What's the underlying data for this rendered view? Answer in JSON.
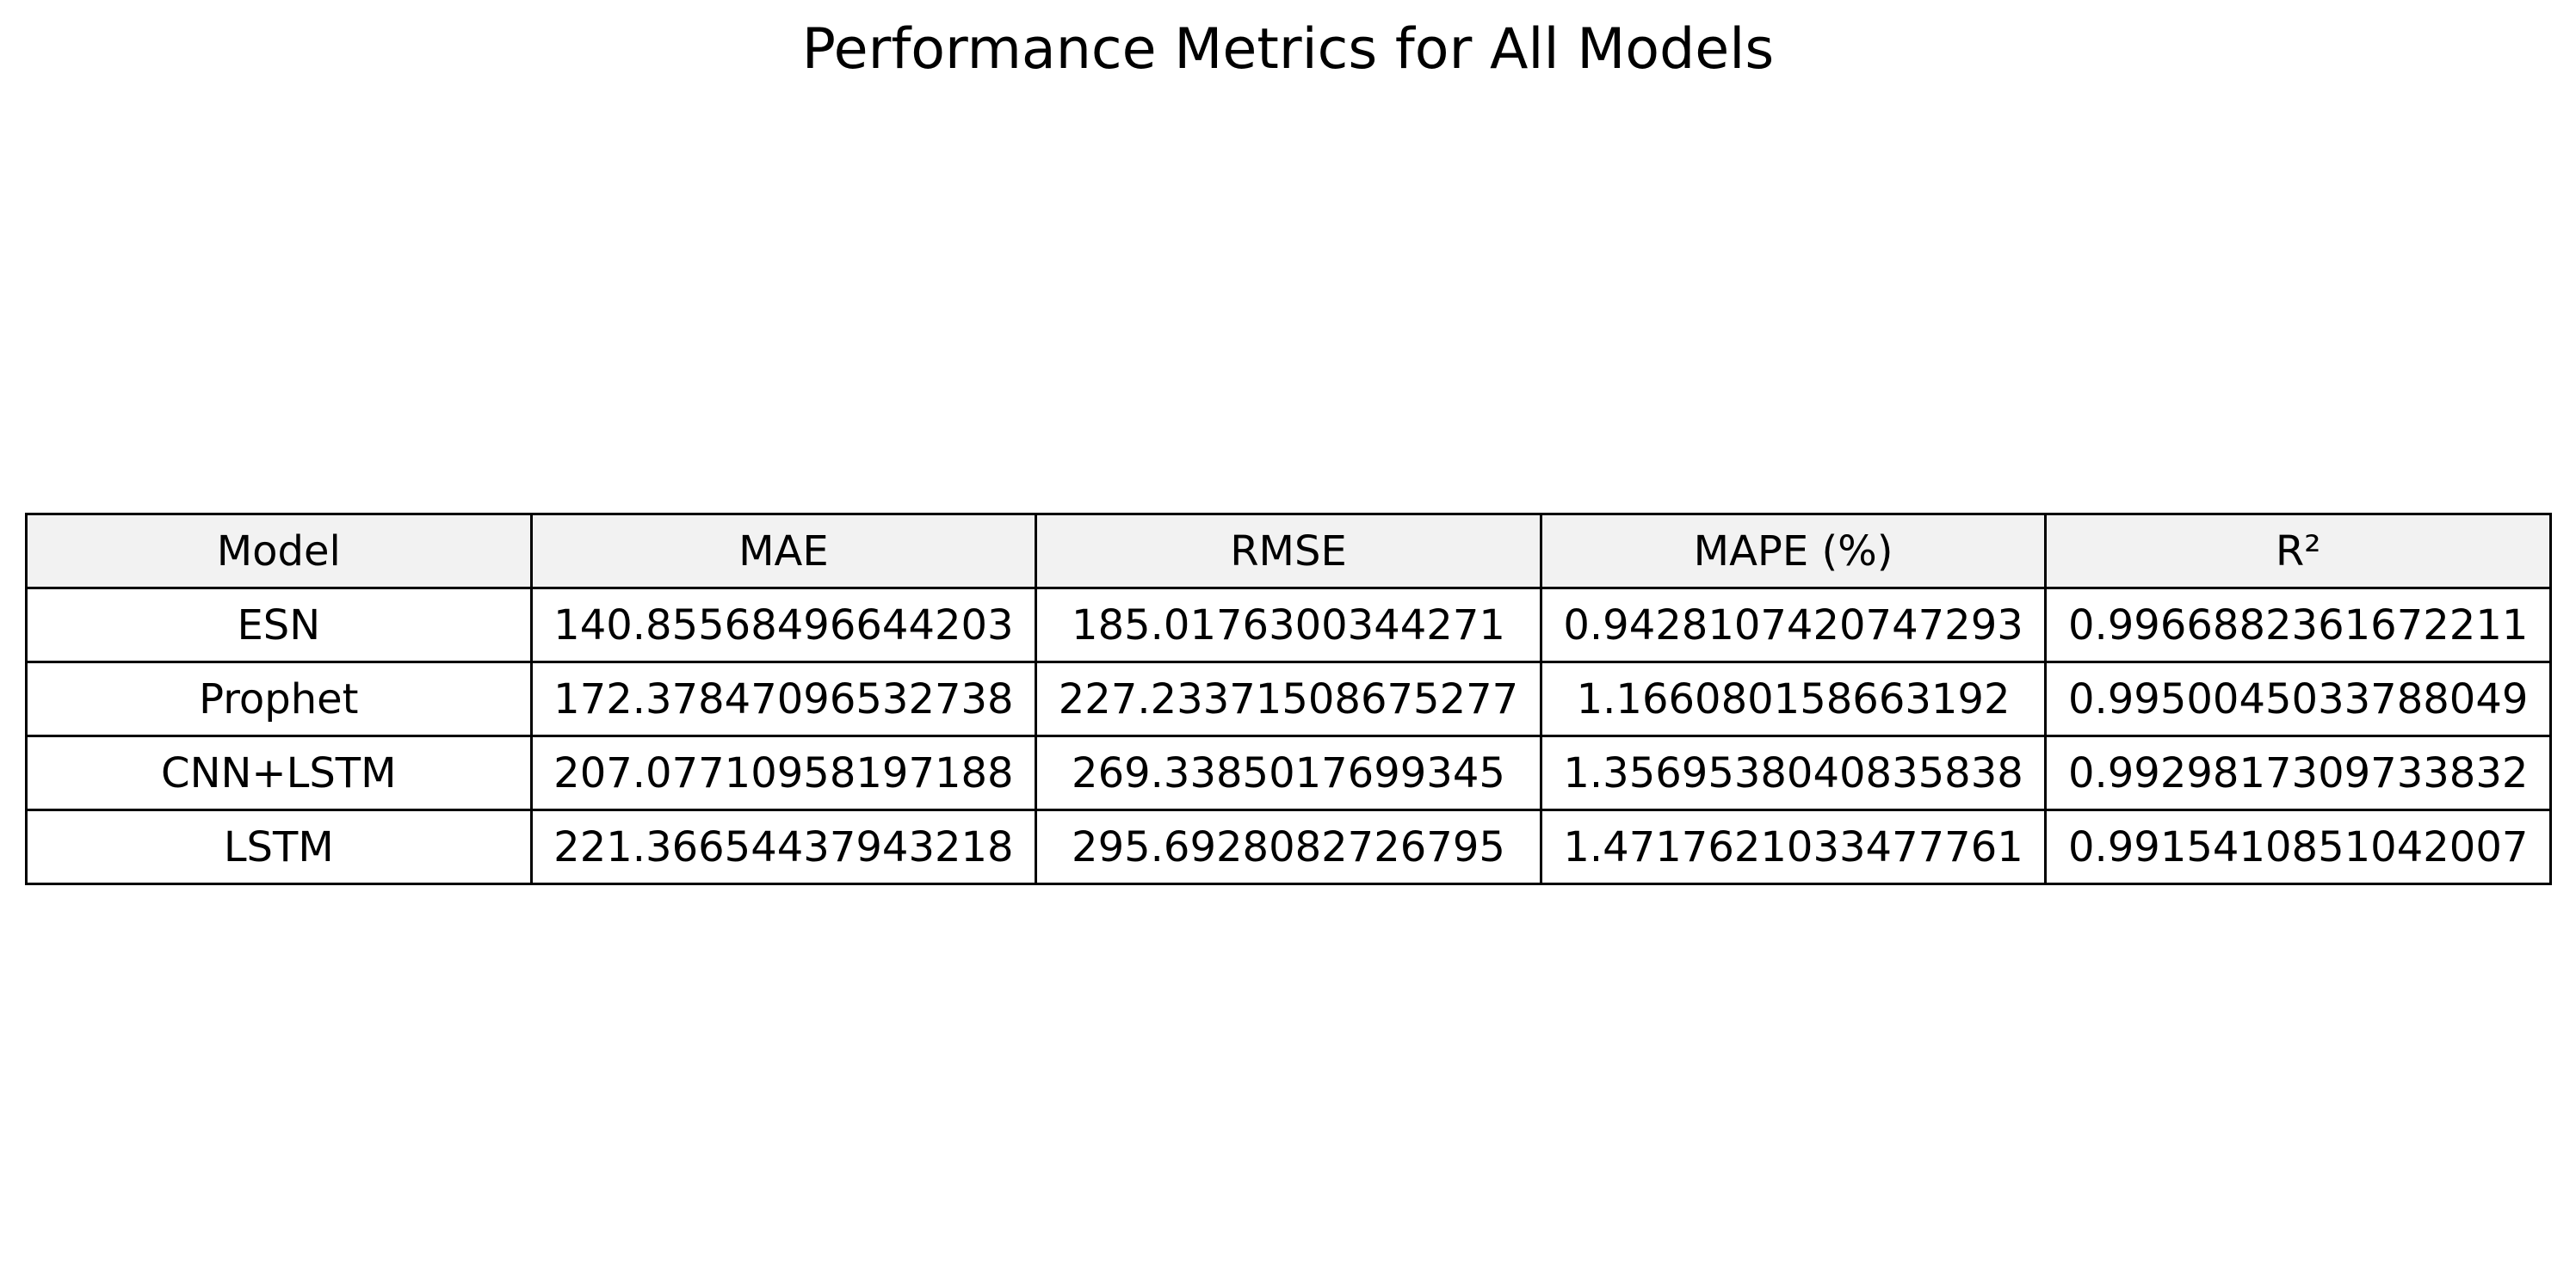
{
  "chart_data": {
    "type": "table",
    "title": "Performance Metrics for All Models",
    "columns": [
      "Model",
      "MAE",
      "RMSE",
      "MAPE (%)",
      "R²"
    ],
    "rows": [
      [
        "ESN",
        "140.85568496644203",
        "185.0176300344271",
        "0.9428107420747293",
        "0.9966882361672211"
      ],
      [
        "Prophet",
        "172.37847096532738",
        "227.23371508675277",
        "1.166080158663192",
        "0.9950045033788049"
      ],
      [
        "CNN+LSTM",
        "207.07710958197188",
        "269.3385017699345",
        "1.3569538040835838",
        "0.9929817309733832"
      ],
      [
        "LSTM",
        "221.36654437943218",
        "295.6928082726795",
        "1.4717621033477761",
        "0.9915410851042007"
      ]
    ],
    "header_background": "#f2f2f2",
    "border_color": "#000000"
  }
}
